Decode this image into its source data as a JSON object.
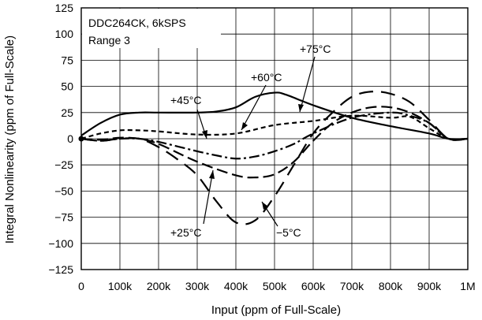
{
  "chart_data": {
    "type": "line",
    "title": "",
    "annotation_lines": [
      "DDC264CK, 6kSPS",
      "Range 3"
    ],
    "xlabel": "Input (ppm of Full-Scale)",
    "ylabel": "Integral Nonlinearity (ppm of Full-Scale)",
    "xlim": [
      0,
      1000000
    ],
    "ylim": [
      -125,
      125
    ],
    "grid": true,
    "x_ticks": [
      0,
      100000,
      200000,
      300000,
      400000,
      500000,
      600000,
      700000,
      800000,
      900000,
      1000000
    ],
    "x_tick_labels": [
      "0",
      "100k",
      "200k",
      "300k",
      "400k",
      "500k",
      "600k",
      "700k",
      "800k",
      "900k",
      "1M"
    ],
    "y_ticks": [
      125,
      100,
      75,
      50,
      25,
      0,
      -25,
      -50,
      -75,
      -100,
      -125
    ],
    "y_tick_labels": [
      "125",
      "100",
      "75",
      "50",
      "25",
      "0",
      "−25",
      "−50",
      "−75",
      "−100",
      "−125"
    ],
    "series": [
      {
        "name": "+75°C",
        "style": "solid",
        "x": [
          0,
          50000,
          100000,
          150000,
          200000,
          300000,
          350000,
          400000,
          450000,
          500000,
          530000,
          600000,
          700000,
          800000,
          900000,
          950000,
          1000000
        ],
        "y": [
          3,
          15,
          23,
          25,
          25,
          25,
          26,
          30,
          40,
          44,
          42,
          32,
          20,
          12,
          5,
          0,
          0
        ]
      },
      {
        "name": "+60°C",
        "style": "short-dash",
        "x": [
          0,
          50000,
          100000,
          150000,
          200000,
          300000,
          400000,
          500000,
          600000,
          700000,
          800000,
          850000,
          900000,
          950000,
          1000000
        ],
        "y": [
          0,
          5,
          8,
          8,
          7,
          4,
          5,
          13,
          17,
          22,
          20,
          21,
          10,
          0,
          0
        ]
      },
      {
        "name": "+45°C",
        "style": "dash-dot",
        "x": [
          0,
          50000,
          100000,
          150000,
          200000,
          300000,
          350000,
          400000,
          450000,
          500000,
          550000,
          600000,
          700000,
          800000,
          850000,
          900000,
          950000,
          1000000
        ],
        "y": [
          0,
          -2,
          0,
          0,
          -3,
          -12,
          -16,
          -19,
          -17,
          -12,
          -5,
          5,
          20,
          25,
          22,
          15,
          0,
          0
        ]
      },
      {
        "name": "+25°C",
        "style": "long-dash",
        "x": [
          0,
          50000,
          100000,
          150000,
          200000,
          300000,
          400000,
          450000,
          500000,
          550000,
          600000,
          650000,
          700000,
          750000,
          800000,
          850000,
          900000,
          950000,
          1000000
        ],
        "y": [
          0,
          -1,
          1,
          0,
          -5,
          -22,
          -35,
          -37,
          -34,
          -22,
          -2,
          15,
          25,
          30,
          30,
          25,
          15,
          0,
          0
        ]
      },
      {
        "name": "−5°C",
        "style": "long-dash-wide",
        "x": [
          0,
          50000,
          100000,
          150000,
          200000,
          250000,
          300000,
          350000,
          400000,
          450000,
          500000,
          550000,
          600000,
          650000,
          700000,
          750000,
          800000,
          850000,
          900000,
          950000,
          1000000
        ],
        "y": [
          0,
          -2,
          0,
          0,
          -8,
          -20,
          -35,
          -60,
          -80,
          -78,
          -55,
          -25,
          5,
          25,
          40,
          45,
          43,
          35,
          18,
          0,
          0
        ]
      }
    ],
    "callouts": [
      "+75°C",
      "+60°C",
      "+45°C",
      "+25°C",
      "−5°C"
    ]
  }
}
